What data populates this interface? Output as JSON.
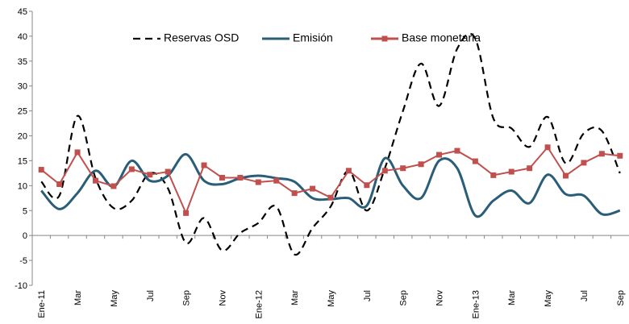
{
  "chart_data": {
    "type": "line",
    "categories": [
      "Ene-11",
      null,
      "Mar",
      null,
      "May",
      null,
      "Jul",
      null,
      "Sep",
      null,
      "Nov",
      null,
      "Ene-12",
      null,
      "Mar",
      null,
      "May",
      null,
      "Jul",
      null,
      "Sep",
      null,
      "Nov",
      null,
      "Ene-13",
      null,
      "Mar",
      null,
      "May",
      null,
      "Jul",
      null,
      "Sep"
    ],
    "series": [
      {
        "name": "Reservas OSD",
        "color": "#000000",
        "dashed": true,
        "smooth": true,
        "markers": false,
        "values": [
          10.8,
          8,
          24,
          11.5,
          5.5,
          7,
          12.5,
          9.5,
          -1.5,
          3.5,
          -3,
          0.5,
          2.5,
          5.8,
          -3.8,
          1.5,
          5.8,
          13,
          5,
          13.5,
          25,
          34.5,
          26,
          37.5,
          39.5,
          23.5,
          21.5,
          17.8,
          23.8,
          14.5,
          20.5,
          21,
          12.5
        ]
      },
      {
        "name": "Emisión",
        "color": "#2a5d78",
        "dashed": false,
        "smooth": true,
        "markers": false,
        "values": [
          9,
          5.3,
          8.5,
          13,
          9.8,
          15,
          11,
          12,
          16.3,
          11,
          10.3,
          11.5,
          12,
          11.5,
          10.8,
          7.5,
          7.3,
          7.5,
          6,
          15.5,
          10,
          7.5,
          15,
          13.5,
          4,
          7,
          9,
          6.5,
          12.2,
          8.3,
          8,
          4.3,
          5
        ]
      },
      {
        "name": "Base monetaria",
        "color": "#c0504d",
        "dashed": false,
        "smooth": false,
        "markers": true,
        "values": [
          13.2,
          10.3,
          16.7,
          11,
          9.9,
          13.3,
          12.2,
          12.8,
          4.5,
          14.1,
          11.6,
          11.6,
          10.7,
          11,
          8.5,
          9.4,
          7.6,
          13,
          10.1,
          13,
          13.5,
          14.3,
          16.2,
          17,
          14.9,
          12.1,
          12.8,
          13.5,
          17.7,
          12,
          14.6,
          16.4,
          16
        ]
      }
    ],
    "ylim": [
      -10,
      45
    ],
    "yticks": [
      -10,
      -5,
      0,
      5,
      10,
      15,
      20,
      25,
      30,
      35,
      40,
      45
    ],
    "grid": false,
    "legend": "top"
  }
}
